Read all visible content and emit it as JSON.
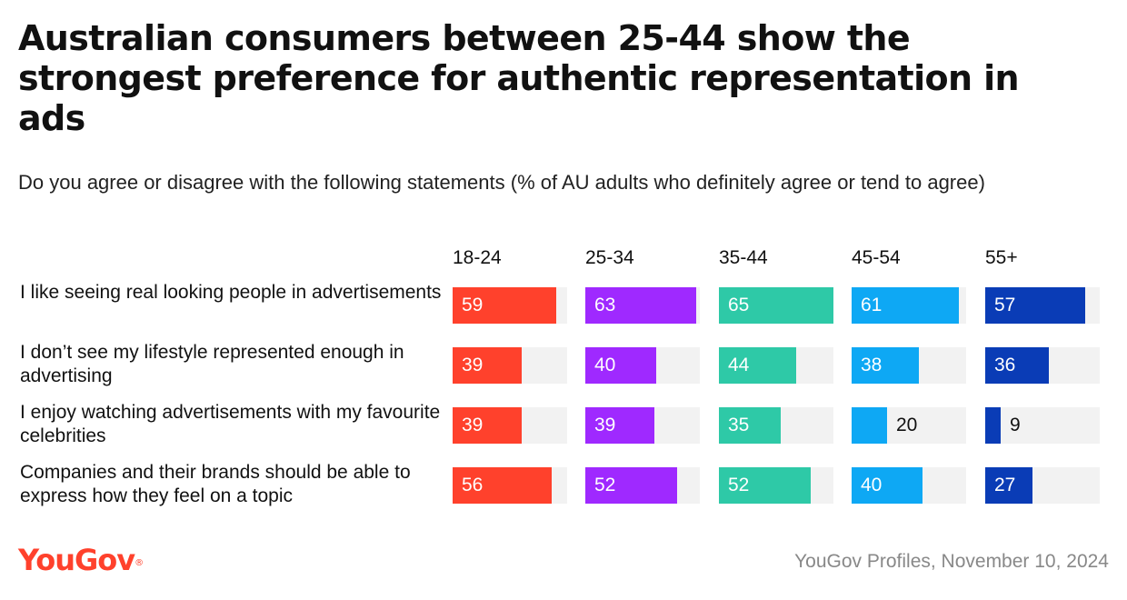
{
  "title": "Australian consumers between 25-44 show the strongest preference for authentic representation in ads",
  "subtitle": "Do you agree or disagree with the following statements (% of AU adults who definitely agree or tend to agree)",
  "logo": "YouGov",
  "source": "YouGov Profiles, November 10, 2024",
  "chart_data": {
    "type": "bar",
    "value_unit": "%",
    "xlim": [
      0,
      65
    ],
    "categories": [
      "I like seeing real looking people in advertisements",
      "I don’t see my lifestyle represented enough in advertising",
      "I enjoy watching advertisements with my favourite celebrities",
      "Companies and their brands should be able to express how they feel on a topic"
    ],
    "series": [
      {
        "name": "18-24",
        "color": "#ff412c",
        "values": [
          59,
          39,
          39,
          56
        ]
      },
      {
        "name": "25-34",
        "color": "#9f29ff",
        "values": [
          63,
          40,
          39,
          52
        ]
      },
      {
        "name": "35-44",
        "color": "#2ec9a7",
        "values": [
          65,
          44,
          35,
          52
        ]
      },
      {
        "name": "45-54",
        "color": "#0ea8f4",
        "values": [
          61,
          38,
          20,
          40
        ]
      },
      {
        "name": "55+",
        "color": "#0a3cb6",
        "values": [
          57,
          36,
          9,
          27
        ]
      }
    ]
  }
}
